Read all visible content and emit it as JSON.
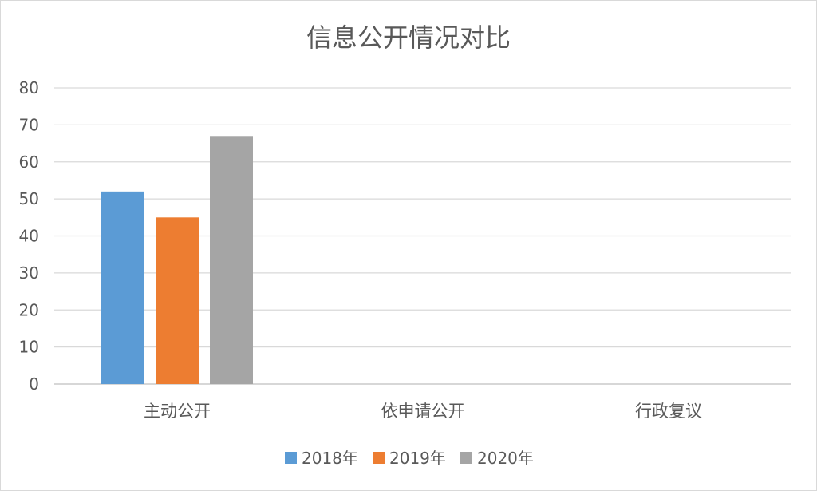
{
  "chart_data": {
    "type": "bar",
    "title": "信息公开情况对比",
    "categories": [
      "主动公开",
      "依申请公开",
      "行政复议"
    ],
    "series": [
      {
        "name": "2018年",
        "color": "#5b9bd5",
        "values": [
          52,
          0,
          0
        ]
      },
      {
        "name": "2019年",
        "color": "#ed7d31",
        "values": [
          45,
          0,
          0
        ]
      },
      {
        "name": "2020年",
        "color": "#a5a5a5",
        "values": [
          67,
          0,
          0
        ]
      }
    ],
    "ylim": [
      0,
      80
    ],
    "yticks": [
      0,
      10,
      20,
      30,
      40,
      50,
      60,
      70,
      80
    ],
    "grid": true,
    "legend_position": "bottom"
  }
}
